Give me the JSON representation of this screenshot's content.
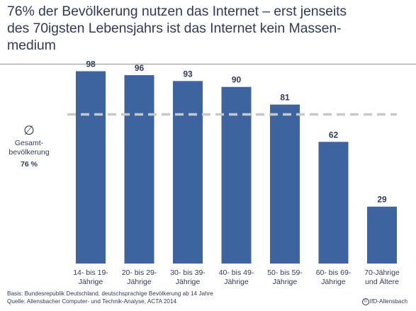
{
  "title": "76% der Bevölkerung nutzen das Internet – erst jenseits\ndes 70igsten Lebensjahrs ist das Internet kein Massen-\nmedium",
  "average": {
    "symbol": "∅",
    "label": "Gesamt-\nbevölkerung",
    "value_text": "76 %"
  },
  "footer": {
    "basis": "Basis: Bundesrepublik Deutschland, deutschsprachige Bevölkerung ab 14 Jahre",
    "source": "Quelle: Allensbacher Computer- und Technik-Analyse, ACTA 2014",
    "copyright": "IfD-Allensbach"
  },
  "chart_data": {
    "type": "bar",
    "title": "76% der Bevölkerung nutzen das Internet – erst jenseits des 70igsten Lebensjahrs ist das Internet kein Massenmedium",
    "categories": [
      [
        "14- bis 19-",
        "Jährige"
      ],
      [
        "20- bis 29-",
        "Jährige"
      ],
      [
        "30- bis 39-",
        "Jährige"
      ],
      [
        "40- bis 49-",
        "Jährige"
      ],
      [
        "50- bis 59-",
        "Jährige"
      ],
      [
        "60- bis 69-",
        "Jährige"
      ],
      [
        "70-Jährige",
        "und Ältere"
      ]
    ],
    "values": [
      98,
      96,
      93,
      90,
      81,
      62,
      29
    ],
    "reference_line": {
      "value": 76,
      "style": "dashed"
    },
    "ylim": [
      0,
      100
    ],
    "grid": false,
    "colors": {
      "bar": "#3e64a0",
      "reference_line": "#c8c8c8",
      "text": "#2f3b59"
    }
  }
}
